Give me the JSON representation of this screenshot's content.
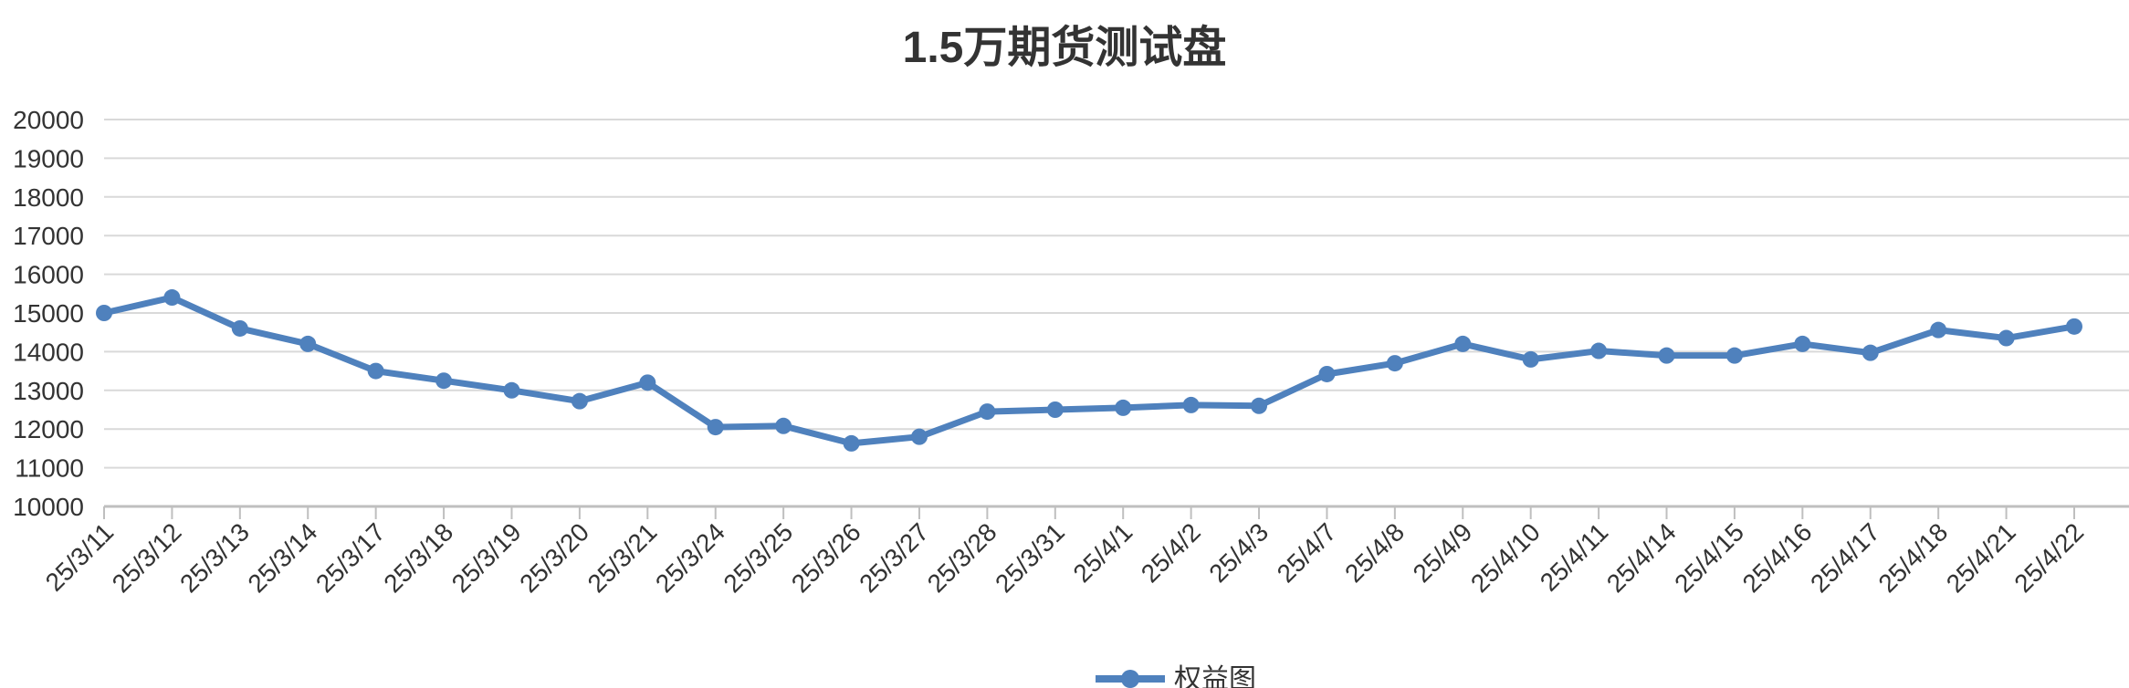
{
  "chart_data": {
    "type": "line",
    "title": "1.5万期货测试盘",
    "xlabel": "",
    "ylabel": "",
    "ylim": [
      10000,
      20000
    ],
    "yticks": [
      10000,
      11000,
      12000,
      13000,
      14000,
      15000,
      16000,
      17000,
      18000,
      19000,
      20000
    ],
    "grid": true,
    "legend_position": "bottom",
    "categories": [
      "25/3/11",
      "25/3/12",
      "25/3/13",
      "25/3/14",
      "25/3/17",
      "25/3/18",
      "25/3/19",
      "25/3/20",
      "25/3/21",
      "25/3/24",
      "25/3/25",
      "25/3/26",
      "25/3/27",
      "25/3/28",
      "25/3/31",
      "25/4/1",
      "25/4/2",
      "25/4/3",
      "25/4/7",
      "25/4/8",
      "25/4/9",
      "25/4/10",
      "25/4/11",
      "25/4/14",
      "25/4/15",
      "25/4/16",
      "25/4/17",
      "25/4/18",
      "25/4/21",
      "25/4/22"
    ],
    "series": [
      {
        "name": "权益图",
        "color": "#4f81bd",
        "values": [
          15000,
          15400,
          14600,
          14200,
          13500,
          13250,
          13000,
          12720,
          13200,
          12050,
          12080,
          11630,
          11800,
          12450,
          12500,
          12550,
          12620,
          12600,
          13420,
          13700,
          14200,
          13800,
          14020,
          13900,
          13900,
          14200,
          13970,
          14560,
          14350,
          14650
        ]
      }
    ]
  }
}
